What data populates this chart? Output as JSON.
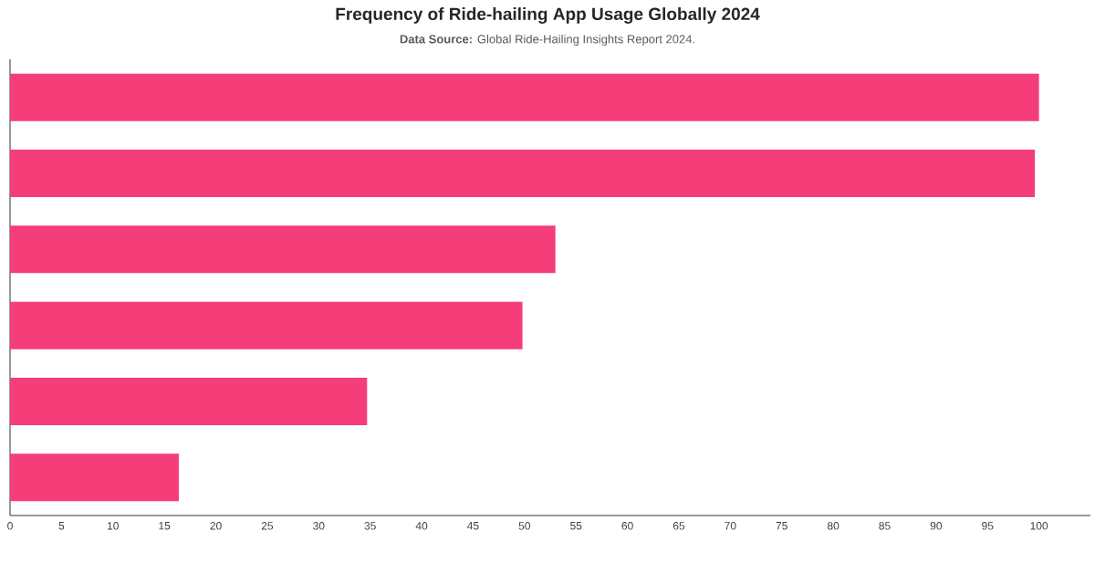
{
  "chart_data": {
    "type": "bar",
    "orientation": "horizontal",
    "title": "Frequency of Ride-hailing App Usage Globally 2024",
    "subtitle": "**Data Source:** Global Ride-Hailing Insights Report 2024.",
    "categories": [
      null,
      null,
      null,
      null,
      null,
      null
    ],
    "values": [
      100,
      99.6,
      53,
      49.8,
      34.7,
      16.4
    ],
    "color": "#f53d7a",
    "xlim": [
      0,
      105
    ],
    "xticks": [
      0,
      5,
      10,
      15,
      20,
      25,
      30,
      35,
      40,
      45,
      50,
      55,
      60,
      65,
      70,
      75,
      80,
      85,
      90,
      95,
      100
    ]
  }
}
